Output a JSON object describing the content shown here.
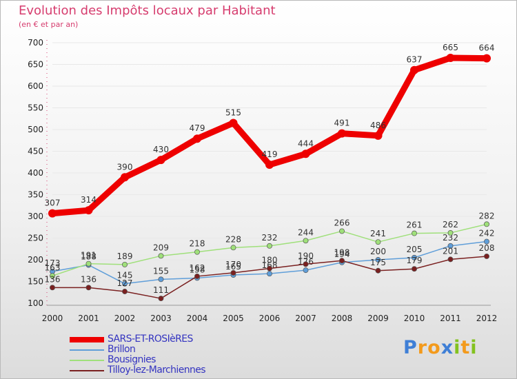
{
  "title": "Evolution des Impôts locaux par Habitant",
  "subtitle": "(en € et par an)",
  "logo": {
    "letters": [
      "P",
      "r",
      "o",
      "x",
      "i",
      "t",
      "i"
    ],
    "colors": [
      "#3f7fd6",
      "#f39a1c",
      "#f39a1c",
      "#3f7fd6",
      "#83c21f",
      "#f39a1c",
      "#83c21f"
    ]
  },
  "chart_data": {
    "type": "line",
    "title": "Evolution des Impôts locaux par Habitant",
    "subtitle": "(en € et par an)",
    "x": [
      "2000",
      "2001",
      "2002",
      "2003",
      "2004",
      "2005",
      "2006",
      "2007",
      "2008",
      "2009",
      "2010",
      "2011",
      "2012"
    ],
    "ylim": [
      100,
      700
    ],
    "yticks": [
      "100",
      "150",
      "200",
      "250",
      "300",
      "350",
      "400",
      "450",
      "500",
      "550",
      "600",
      "650",
      "700"
    ],
    "legend_position": "bottom-left",
    "series": [
      {
        "name": "SARS-ET-ROSIèRES",
        "color": "#ee0000",
        "weight": "bold",
        "values": [
          307,
          314,
          390,
          430,
          479,
          515,
          419,
          444,
          491,
          486,
          637,
          665,
          664
        ],
        "labels": [
          "307",
          "314",
          "390",
          "430",
          "479",
          "515",
          "419",
          "444",
          "491",
          "486",
          "637",
          "665",
          "664"
        ]
      },
      {
        "name": "Brillon",
        "color": "#5f9ed9",
        "weight": "thin",
        "values": [
          173,
          188,
          145,
          155,
          158,
          165,
          168,
          176,
          194,
          200,
          205,
          232,
          242
        ],
        "labels": [
          "173",
          "188",
          "145",
          "155",
          "158",
          "165",
          "168",
          "176",
          "194",
          "200",
          "205",
          "232",
          "242"
        ]
      },
      {
        "name": "Bousignies",
        "color": "#9fe07a",
        "weight": "thin",
        "values": [
          163,
          191,
          189,
          209,
          218,
          228,
          232,
          244,
          266,
          241,
          261,
          262,
          282
        ],
        "labels": [
          "163",
          "191",
          "189",
          "209",
          "218",
          "228",
          "232",
          "244",
          "266",
          "241",
          "261",
          "262",
          "282"
        ]
      },
      {
        "name": "Tilloy-lez-Marchiennes",
        "color": "#7a2020",
        "weight": "thin",
        "values": [
          136,
          136,
          127,
          111,
          162,
          170,
          180,
          190,
          198,
          175,
          179,
          201,
          208
        ],
        "labels": [
          "136",
          "136",
          "127",
          "111",
          "162",
          "170",
          "180",
          "190",
          "198",
          "175",
          "179",
          "201",
          "208"
        ]
      }
    ]
  }
}
